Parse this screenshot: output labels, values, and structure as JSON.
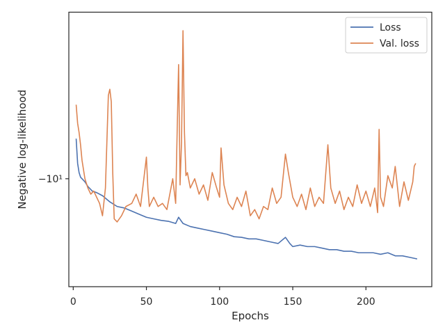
{
  "chart_data": {
    "type": "line",
    "title": "",
    "xlabel": "Epochs",
    "ylabel": "Negative log-likelihood",
    "xlim": [
      -3,
      245
    ],
    "xticks": [
      0,
      50,
      100,
      150,
      200
    ],
    "ylim": [
      -13.5,
      -4.6
    ],
    "yticks": [
      -10
    ],
    "ytick_labels": [
      "−10¹"
    ],
    "yscale": "symlog",
    "grid": false,
    "legend_position": "top-right",
    "colors": {
      "loss": "#4c72b0",
      "val_loss": "#dd8452",
      "axes": "#262626"
    },
    "series": [
      {
        "name": "Loss",
        "color": "#4c72b0",
        "x": [
          2,
          3,
          4,
          5,
          6,
          8,
          10,
          13,
          16,
          20,
          25,
          30,
          35,
          40,
          45,
          50,
          55,
          60,
          65,
          70,
          72,
          75,
          80,
          85,
          90,
          95,
          100,
          105,
          110,
          115,
          120,
          125,
          130,
          135,
          140,
          145,
          148,
          150,
          155,
          160,
          165,
          170,
          175,
          180,
          185,
          190,
          195,
          200,
          205,
          210,
          215,
          220,
          225,
          230,
          235
        ],
        "y": [
          -8.7,
          -9.5,
          -9.8,
          -9.95,
          -10.0,
          -10.1,
          -10.25,
          -10.4,
          -10.45,
          -10.55,
          -10.75,
          -10.9,
          -10.95,
          -11.05,
          -11.15,
          -11.25,
          -11.3,
          -11.35,
          -11.38,
          -11.45,
          -11.25,
          -11.45,
          -11.55,
          -11.6,
          -11.65,
          -11.7,
          -11.75,
          -11.8,
          -11.88,
          -11.9,
          -11.95,
          -11.95,
          -12.0,
          -12.05,
          -12.1,
          -11.9,
          -12.1,
          -12.2,
          -12.15,
          -12.2,
          -12.2,
          -12.25,
          -12.3,
          -12.3,
          -12.35,
          -12.35,
          -12.4,
          -12.4,
          -12.4,
          -12.45,
          -12.4,
          -12.5,
          -12.5,
          -12.55,
          -12.6
        ]
      },
      {
        "name": "Val. loss",
        "color": "#dd8452",
        "x": [
          2,
          3,
          4,
          5,
          6,
          8,
          10,
          12,
          14,
          16,
          18,
          20,
          22,
          24,
          25,
          26,
          27,
          28,
          30,
          33,
          36,
          40,
          43,
          46,
          48,
          50,
          51,
          52,
          55,
          58,
          61,
          64,
          66,
          68,
          70,
          71,
          72,
          73,
          74,
          75,
          76,
          77,
          78,
          80,
          83,
          86,
          89,
          92,
          95,
          98,
          100,
          101,
          103,
          106,
          109,
          112,
          115,
          118,
          121,
          124,
          127,
          130,
          133,
          136,
          139,
          142,
          145,
          147,
          150,
          153,
          156,
          159,
          162,
          165,
          168,
          171,
          174,
          175,
          176,
          179,
          182,
          185,
          188,
          191,
          194,
          197,
          200,
          203,
          206,
          208,
          209,
          210,
          212,
          215,
          218,
          220,
          223,
          226,
          229,
          232,
          233,
          234
        ],
        "y": [
          -7.6,
          -8.2,
          -8.5,
          -8.9,
          -9.4,
          -10.0,
          -10.3,
          -10.5,
          -10.4,
          -10.6,
          -10.8,
          -11.2,
          -10.3,
          -7.3,
          -7.1,
          -7.5,
          -9.8,
          -11.3,
          -11.4,
          -11.2,
          -10.9,
          -10.8,
          -10.5,
          -10.9,
          -10.1,
          -9.3,
          -10.3,
          -10.9,
          -10.6,
          -10.9,
          -10.8,
          -11.0,
          -10.5,
          -10.0,
          -10.8,
          -8.5,
          -6.3,
          -10.2,
          -8.8,
          -5.2,
          -8.5,
          -9.9,
          -9.8,
          -10.3,
          -10.0,
          -10.5,
          -10.2,
          -10.7,
          -9.8,
          -10.3,
          -10.6,
          -9.0,
          -10.2,
          -10.8,
          -11.0,
          -10.6,
          -10.9,
          -10.4,
          -11.2,
          -11.0,
          -11.3,
          -10.9,
          -11.0,
          -10.3,
          -10.8,
          -10.6,
          -9.2,
          -9.8,
          -10.6,
          -10.9,
          -10.5,
          -11.0,
          -10.3,
          -10.9,
          -10.6,
          -10.8,
          -8.9,
          -9.6,
          -10.3,
          -10.8,
          -10.4,
          -11.0,
          -10.6,
          -10.9,
          -10.2,
          -10.8,
          -10.4,
          -10.9,
          -10.3,
          -11.1,
          -8.4,
          -10.6,
          -10.9,
          -9.9,
          -10.3,
          -9.6,
          -10.9,
          -10.1,
          -10.7,
          -10.1,
          -9.6,
          -9.5
        ]
      }
    ]
  }
}
